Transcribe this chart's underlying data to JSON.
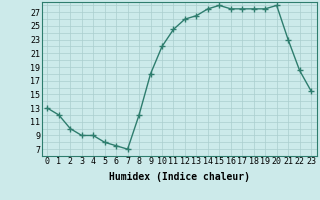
{
  "x": [
    0,
    1,
    2,
    3,
    4,
    5,
    6,
    7,
    8,
    9,
    10,
    11,
    12,
    13,
    14,
    15,
    16,
    17,
    18,
    19,
    20,
    21,
    22,
    23
  ],
  "y": [
    13,
    12,
    10,
    9,
    9,
    8,
    7.5,
    7,
    12,
    18,
    22,
    24.5,
    26,
    26.5,
    27.5,
    28,
    27.5,
    27.5,
    27.5,
    27.5,
    28,
    23,
    18.5,
    15.5
  ],
  "line_color": "#2e7d6e",
  "marker": "+",
  "marker_size": 4,
  "bg_color": "#cceaea",
  "grid_color": "#aacece",
  "xlabel": "Humidex (Indice chaleur)",
  "xlim": [
    -0.5,
    23.5
  ],
  "ylim": [
    6,
    28.5
  ],
  "yticks": [
    7,
    9,
    11,
    13,
    15,
    17,
    19,
    21,
    23,
    25,
    27
  ],
  "xticks": [
    0,
    1,
    2,
    3,
    4,
    5,
    6,
    7,
    8,
    9,
    10,
    11,
    12,
    13,
    14,
    15,
    16,
    17,
    18,
    19,
    20,
    21,
    22,
    23
  ],
  "xlabel_fontsize": 7,
  "tick_fontsize": 6,
  "line_width": 1.0,
  "marker_color": "#2e7d6e"
}
